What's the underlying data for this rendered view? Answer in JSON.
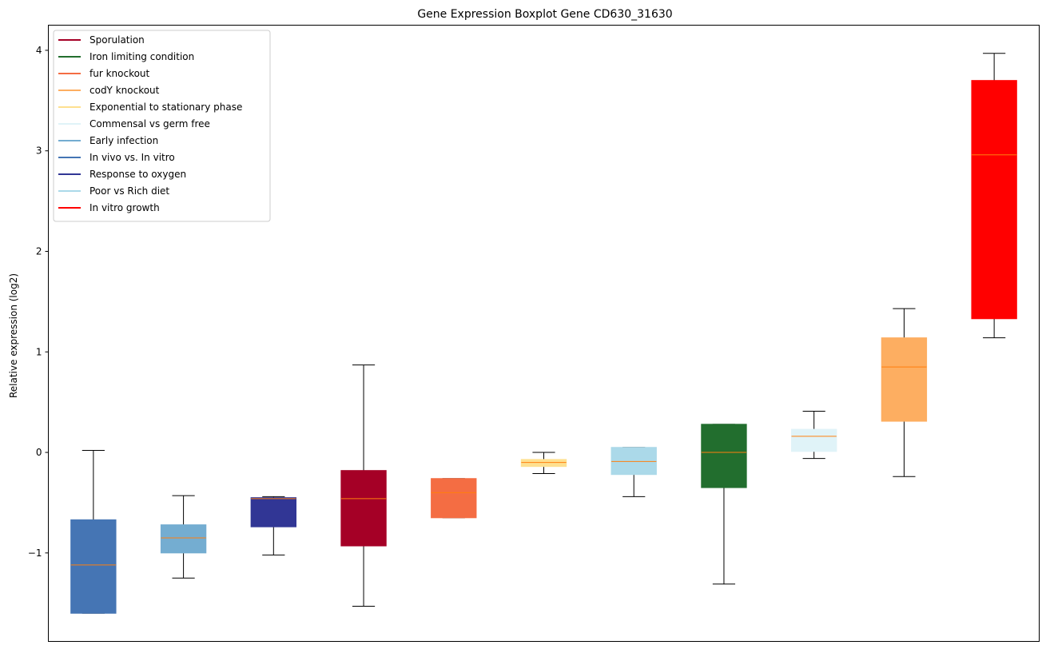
{
  "chart_data": {
    "type": "boxplot",
    "title": "Gene Expression Boxplot Gene CD630_31630",
    "xlabel": "",
    "ylabel": "Relative expression (log2)",
    "ylim": [
      -1.88,
      4.25
    ],
    "yticks": [
      -1,
      0,
      1,
      2,
      3,
      4
    ],
    "ytick_labels": [
      "−1",
      "0",
      "1",
      "2",
      "3",
      "4"
    ],
    "grid": false,
    "legend_position": "top-left",
    "legend": [
      {
        "label": "Sporulation",
        "color": "#a50026"
      },
      {
        "label": "Iron limiting condition",
        "color": "#226e2e"
      },
      {
        "label": "fur knockout",
        "color": "#f46d43"
      },
      {
        "label": "codY knockout",
        "color": "#fdae61"
      },
      {
        "label": "Exponential to stationary phase",
        "color": "#fee090"
      },
      {
        "label": "Commensal vs germ free",
        "color": "#e0f3f8"
      },
      {
        "label": "Early infection",
        "color": "#74add1"
      },
      {
        "label": "In vivo vs. In vitro",
        "color": "#4575b4"
      },
      {
        "label": "Response to oxygen",
        "color": "#313695"
      },
      {
        "label": "Poor vs Rich diet",
        "color": "#abd9e9"
      },
      {
        "label": "In vitro growth",
        "color": "#ff0000"
      }
    ],
    "median_color": "#ff7f0e",
    "boxes": [
      {
        "series": "In vivo vs. In vitro",
        "color": "#4575b4",
        "whislo": -1.6,
        "q1": -1.6,
        "med": -1.12,
        "q3": -0.67,
        "whishi": 0.02
      },
      {
        "series": "Early infection",
        "color": "#74add1",
        "whislo": -1.25,
        "q1": -1.0,
        "med": -0.85,
        "q3": -0.72,
        "whishi": -0.43
      },
      {
        "series": "Response to oxygen",
        "color": "#313695",
        "whislo": -1.02,
        "q1": -0.74,
        "med": -0.46,
        "q3": -0.45,
        "whishi": -0.44
      },
      {
        "series": "Sporulation",
        "color": "#a50026",
        "whislo": -1.53,
        "q1": -0.93,
        "med": -0.46,
        "q3": -0.18,
        "whishi": 0.87
      },
      {
        "series": "fur knockout",
        "color": "#f46d43",
        "whislo": -0.65,
        "q1": -0.65,
        "med": -0.4,
        "q3": -0.26,
        "whishi": -0.26
      },
      {
        "series": "Exponential to stationary phase",
        "color": "#fee090",
        "whislo": -0.21,
        "q1": -0.14,
        "med": -0.1,
        "q3": -0.07,
        "whishi": 0.0
      },
      {
        "series": "Poor vs Rich diet",
        "color": "#abd9e9",
        "whislo": -0.44,
        "q1": -0.22,
        "med": -0.09,
        "q3": 0.05,
        "whishi": 0.05
      },
      {
        "series": "Iron limiting condition",
        "color": "#226e2e",
        "whislo": -1.31,
        "q1": -0.35,
        "med": 0.0,
        "q3": 0.28,
        "whishi": 0.28
      },
      {
        "series": "Commensal vs germ free",
        "color": "#e0f3f8",
        "whislo": -0.06,
        "q1": 0.01,
        "med": 0.16,
        "q3": 0.23,
        "whishi": 0.41
      },
      {
        "series": "codY knockout",
        "color": "#fdae61",
        "whislo": -0.24,
        "q1": 0.31,
        "med": 0.85,
        "q3": 1.14,
        "whishi": 1.43
      },
      {
        "series": "In vitro growth",
        "color": "#ff0000",
        "whislo": 1.14,
        "q1": 1.33,
        "med": 2.96,
        "q3": 3.7,
        "whishi": 3.97
      }
    ]
  }
}
